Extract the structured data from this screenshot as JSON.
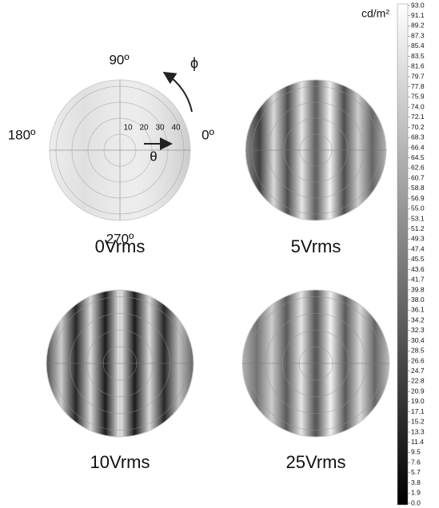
{
  "panels": [
    {
      "label": "0Vrms"
    },
    {
      "label": "5Vrms"
    },
    {
      "label": "10Vrms"
    },
    {
      "label": "25Vrms"
    }
  ],
  "angle_labels": {
    "top": "90º",
    "left": "180º",
    "right": "0º",
    "bottom": "270º"
  },
  "radial_labels": [
    "10",
    "20",
    "30",
    "40"
  ],
  "phi": "ϕ",
  "theta": "θ",
  "colorbar": {
    "unit": "cd/m²",
    "ticks": [
      "93.0",
      "91.1",
      "89.2",
      "87.3",
      "85.4",
      "83.5",
      "81.6",
      "79.7",
      "77.8",
      "75.9",
      "74.0",
      "72.1",
      "70.2",
      "68.3",
      "66.4",
      "64.5",
      "62.6",
      "60.7",
      "58.8",
      "56.9",
      "55.0",
      "53.1",
      "51.2",
      "49.3",
      "47.4",
      "45.5",
      "43.6",
      "41.7",
      "39.8",
      "38.0",
      "36.1",
      "34.2",
      "32.3",
      "30.4",
      "28.5",
      "26.6",
      "24.7",
      "22.8",
      "20.9",
      "19.0",
      "17.1",
      "15.2",
      "13.3",
      "11.4",
      "9.5",
      "7.6",
      "5.7",
      "3.8",
      "1.9",
      "0.0"
    ]
  }
}
